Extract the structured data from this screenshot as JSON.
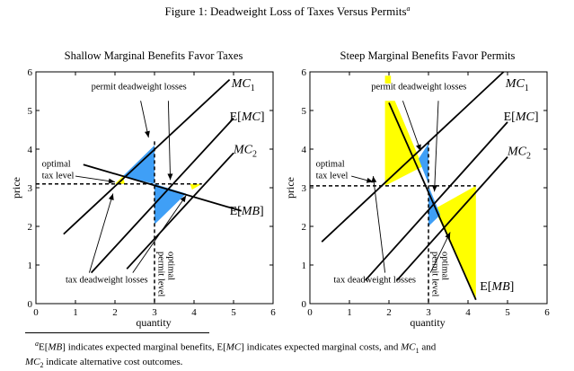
{
  "figure_title": "Figure 1: Deadweight Loss of Taxes Versus Permits",
  "title_footnote_mark": "a",
  "footnote": {
    "mark": "a",
    "text_1": "E[",
    "text_mb": "MB",
    "text_2": "] indicates expected marginal benefits, E[",
    "text_mc": "MC",
    "text_3": "] indicates expected marginal costs, and ",
    "text_mc1": "MC",
    "sub1": "1",
    "text_4": " and",
    "text_mc2": "MC",
    "sub2": "2",
    "text_5": " indicate alternative cost outcomes."
  },
  "colors": {
    "blue_region": "#3f9ff6",
    "yellow_region": "#ffff00",
    "line": "#000000"
  },
  "chart_data": [
    {
      "type": "line",
      "title": "Shallow Marginal Benefits Favor Taxes",
      "xlabel": "quantity",
      "ylabel": "price",
      "xlim": [
        0,
        6
      ],
      "ylim": [
        0,
        6
      ],
      "xticks": [
        "0",
        "1",
        "2",
        "3",
        "4",
        "5",
        "6"
      ],
      "yticks": [
        "0",
        "1",
        "2",
        "3",
        "4",
        "5",
        "6"
      ],
      "series": [
        {
          "name": "MC1",
          "x": [
            0.7,
            4.9
          ],
          "y": [
            1.8,
            5.8
          ]
        },
        {
          "name": "E[MC]",
          "x": [
            1.4,
            5.0
          ],
          "y": [
            0.8,
            4.8
          ]
        },
        {
          "name": "MC2",
          "x": [
            2.3,
            5.0
          ],
          "y": [
            0.9,
            3.9
          ]
        },
        {
          "name": "E[MB]",
          "x": [
            1.2,
            5.2
          ],
          "y": [
            3.6,
            2.4
          ]
        }
      ],
      "optimal_tax_level": 3.1,
      "optimal_permit_level": 3.0,
      "shaded": [
        {
          "color": "blue",
          "points": [
            [
              2.2,
              3.3
            ],
            [
              3.0,
              4.1
            ],
            [
              3.0,
              3.1
            ]
          ]
        },
        {
          "color": "blue",
          "points": [
            [
              3.0,
              3.1
            ],
            [
              3.0,
              2.05
            ],
            [
              3.8,
              2.85
            ]
          ]
        },
        {
          "color": "yellow",
          "points": [
            [
              2.0,
              3.1
            ],
            [
              2.2,
              3.3
            ],
            [
              2.25,
              3.1
            ]
          ]
        },
        {
          "color": "yellow",
          "points": [
            [
              3.9,
              3.1
            ],
            [
              4.2,
              3.1
            ],
            [
              3.95,
              2.95
            ]
          ]
        }
      ],
      "labels": {
        "mc1_a": "MC",
        "mc1_b": "1",
        "emc_a": "E[",
        "emc_b": "MC",
        "emc_c": "]",
        "mc2_a": "MC",
        "mc2_b": "2",
        "emb_a": "E[",
        "emb_b": "MB",
        "emb_c": "]",
        "permit_dwl": "permit deadweight losses",
        "tax_dwl": "tax deadweight losses",
        "opt_tax_1": "optimal",
        "opt_tax_2": "tax level",
        "opt_permit_1": "optimal",
        "opt_permit_2": "permit level"
      }
    },
    {
      "type": "line",
      "title": "Steep Marginal Benefits Favor Permits",
      "xlabel": "quantity",
      "ylabel": "price",
      "xlim": [
        0,
        6
      ],
      "ylim": [
        0,
        6
      ],
      "xticks": [
        "0",
        "1",
        "2",
        "3",
        "4",
        "5",
        "6"
      ],
      "yticks": [
        "0",
        "1",
        "2",
        "3",
        "4",
        "5",
        "6"
      ],
      "series": [
        {
          "name": "MC1",
          "x": [
            0.3,
            4.9
          ],
          "y": [
            1.6,
            6.0
          ]
        },
        {
          "name": "E[MC]",
          "x": [
            1.4,
            5.0
          ],
          "y": [
            0.6,
            4.7
          ]
        },
        {
          "name": "MC2",
          "x": [
            2.2,
            5.0
          ],
          "y": [
            0.6,
            3.8
          ]
        },
        {
          "name": "E[MB]",
          "x": [
            2.0,
            4.2
          ],
          "y": [
            5.2,
            0.1
          ]
        }
      ],
      "optimal_tax_level": 3.05,
      "optimal_permit_level": 3.0,
      "shaded": [
        {
          "color": "yellow",
          "points": [
            [
              1.9,
              5.9
            ],
            [
              2.05,
              5.9
            ],
            [
              2.05,
              5.7
            ],
            [
              1.9,
              5.7
            ]
          ]
        },
        {
          "color": "yellow",
          "points": [
            [
              1.9,
              5.25
            ],
            [
              2.15,
              5.25
            ],
            [
              2.85,
              3.55
            ],
            [
              1.9,
              3.05
            ]
          ]
        },
        {
          "color": "yellow",
          "points": [
            [
              3.15,
              2.45
            ],
            [
              4.2,
              3.05
            ],
            [
              4.2,
              0.1
            ]
          ]
        },
        {
          "color": "blue",
          "points": [
            [
              2.75,
              3.75
            ],
            [
              3.0,
              4.15
            ],
            [
              3.0,
              3.1
            ]
          ]
        },
        {
          "color": "blue",
          "points": [
            [
              3.0,
              2.0
            ],
            [
              3.0,
              3.05
            ],
            [
              3.3,
              2.3
            ]
          ]
        }
      ],
      "labels": {
        "mc1_a": "MC",
        "mc1_b": "1",
        "emc_a": "E[",
        "emc_b": "MC",
        "emc_c": "]",
        "mc2_a": "MC",
        "mc2_b": "2",
        "emb_a": "E[",
        "emb_b": "MB",
        "emb_c": "]",
        "permit_dwl": "permit deadweight losses",
        "tax_dwl": "tax deadweight losses",
        "opt_tax_1": "optimal",
        "opt_tax_2": "tax level",
        "opt_permit_1": "optimal",
        "opt_permit_2": "permit level"
      }
    }
  ]
}
